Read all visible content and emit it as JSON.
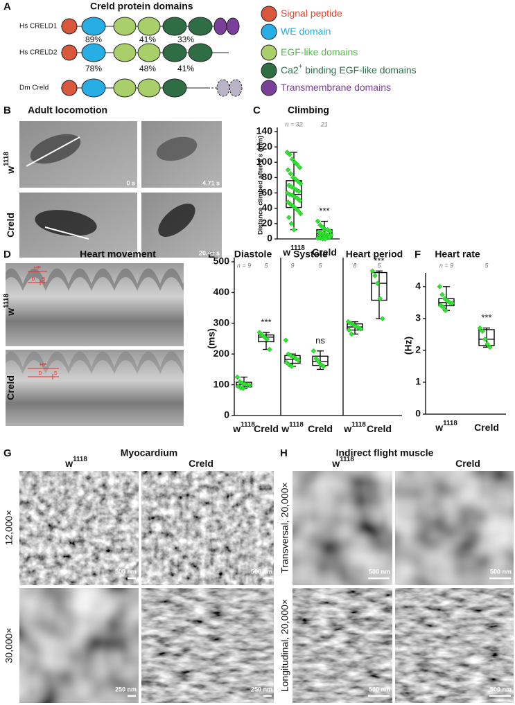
{
  "panels": {
    "A": {
      "label": "A",
      "title": "Creld protein domains",
      "proteins": [
        {
          "name": "Hs CRELD1",
          "identities": [
            "89%",
            "41%",
            "33%"
          ]
        },
        {
          "name": "Hs CRELD2",
          "identities": [
            "78%",
            "48%",
            "41%"
          ]
        },
        {
          "name": "Dm Creld"
        }
      ],
      "legend": [
        {
          "text": "Signal peptide",
          "color": "#e8432d"
        },
        {
          "text": "WE domain",
          "color": "#1cb0e6"
        },
        {
          "text": "EGF-like domains",
          "color": "#52b848"
        },
        {
          "text": "Ca2",
          "sup": "+",
          "tail": " binding EGF-like domains",
          "color": "#27744a"
        },
        {
          "text": "Transmembrane domains",
          "color": "#7a3f99"
        }
      ]
    },
    "B": {
      "label": "B",
      "title": "Adult locomotion",
      "genotypes": [
        {
          "base": "w",
          "sup": "1118"
        },
        {
          "base": "Creld"
        }
      ],
      "times": [
        "0 s",
        "4.71 s",
        "0 s",
        "20.49 s"
      ]
    },
    "C": {
      "label": "C"
    },
    "D": {
      "label": "D",
      "title": "Heart movement",
      "markers": [
        "HP",
        "D",
        "S"
      ]
    },
    "E": {
      "label": "E"
    },
    "F": {
      "label": "F"
    },
    "G": {
      "label": "G",
      "title": "Myocardium",
      "rows": [
        "12,000×",
        "30,000×"
      ],
      "scale_bars": [
        "500 nm",
        "500 nm",
        "250 nm",
        "250 nm"
      ]
    },
    "H": {
      "label": "H",
      "title": "Indirect flight muscle",
      "rows": [
        "Transversal, 20,000×",
        "Longitudinal, 20,000×"
      ],
      "scale_bars": [
        "500 nm",
        "500 nm",
        "500 nm",
        "500 nm"
      ]
    }
  },
  "chart_data": [
    {
      "type": "box",
      "title": "Climbing",
      "ylabel": "Distance climbed after 6 s (mm)",
      "ylim": [
        0,
        140
      ],
      "yticks": [
        0,
        20,
        40,
        60,
        80,
        100,
        120,
        140
      ],
      "point_color": "#2ee62e",
      "groups": [
        {
          "category": {
            "base": "w",
            "sup": "1118"
          },
          "n_label": "n = 32",
          "whisker_low": 12,
          "q1": 41,
          "median": 58,
          "q3": 76,
          "whisker_high": 113,
          "points": [
            113,
            110,
            104,
            100,
            97,
            93,
            90,
            85,
            80,
            78,
            75,
            72,
            70,
            68,
            66,
            64,
            62,
            60,
            58,
            57,
            55,
            53,
            50,
            48,
            45,
            43,
            40,
            37,
            33,
            28,
            20,
            12
          ]
        },
        {
          "category": {
            "base": "Creld"
          },
          "n_label": "21",
          "annotation": "***",
          "whisker_low": 0,
          "q1": 2,
          "median": 7,
          "q3": 12,
          "whisker_high": 23,
          "points": [
            23,
            18,
            15,
            12,
            12,
            10,
            9,
            8,
            7,
            6,
            5,
            5,
            4,
            3,
            3,
            2,
            2,
            1,
            1,
            0,
            0
          ]
        }
      ]
    },
    {
      "type": "box",
      "title": "Diastole",
      "ylabel": "(ms)",
      "ylim": [
        0,
        500
      ],
      "yticks": [
        0,
        100,
        200,
        300,
        400,
        500
      ],
      "point_color": "#2ee62e",
      "groups": [
        {
          "category": {
            "base": "w",
            "sup": "1118"
          },
          "n_label": "n = 9",
          "whisker_low": 88,
          "q1": 93,
          "median": 100,
          "q3": 108,
          "whisker_high": 125,
          "points": [
            125,
            110,
            105,
            102,
            100,
            98,
            95,
            90,
            88
          ]
        },
        {
          "category": {
            "base": "Creld"
          },
          "n_label": "5",
          "annotation": "***",
          "whisker_low": 215,
          "q1": 240,
          "median": 255,
          "q3": 262,
          "whisker_high": 270,
          "points": [
            270,
            262,
            255,
            248,
            215
          ]
        }
      ]
    },
    {
      "type": "box",
      "title": "Systole",
      "ylim": [
        0,
        500
      ],
      "point_color": "#2ee62e",
      "groups": [
        {
          "category": {
            "base": "w",
            "sup": "1118"
          },
          "n_label": "9",
          "whisker_low": 160,
          "q1": 170,
          "median": 183,
          "q3": 195,
          "whisker_high": 200,
          "points": [
            245,
            200,
            195,
            190,
            185,
            180,
            172,
            165,
            160
          ]
        },
        {
          "category": {
            "base": "Creld"
          },
          "n_label": "5",
          "annotation": "ns",
          "whisker_low": 150,
          "q1": 163,
          "median": 175,
          "q3": 193,
          "whisker_high": 210,
          "points": [
            210,
            185,
            175,
            165,
            160
          ]
        }
      ]
    },
    {
      "type": "box",
      "title": "Heart period",
      "ylim": [
        0,
        500
      ],
      "point_color": "#2ee62e",
      "groups": [
        {
          "category": {
            "base": "w",
            "sup": "1118"
          },
          "n_label": "8",
          "whisker_low": 265,
          "q1": 278,
          "median": 288,
          "q3": 298,
          "whisker_high": 305,
          "points": [
            305,
            300,
            295,
            290,
            286,
            282,
            278,
            265
          ]
        },
        {
          "category": {
            "base": "Creld"
          },
          "n_label": "5",
          "annotation": "***",
          "whisker_low": 315,
          "q1": 375,
          "median": 430,
          "q3": 465,
          "whisker_high": 470,
          "points": [
            470,
            455,
            430,
            380,
            315
          ]
        }
      ]
    },
    {
      "type": "box",
      "title": "Heart rate",
      "ylabel": "(Hz)",
      "ylim": [
        0,
        4.3
      ],
      "yticks": [
        0,
        1,
        2,
        3,
        4
      ],
      "point_color": "#2ee62e",
      "groups": [
        {
          "category": {
            "base": "w",
            "sup": "1118"
          },
          "n_label": "n = 9",
          "whisker_low": 3.25,
          "q1": 3.4,
          "median": 3.5,
          "q3": 3.62,
          "whisker_high": 4.0,
          "points": [
            4.0,
            3.75,
            3.62,
            3.55,
            3.5,
            3.48,
            3.42,
            3.35,
            3.25
          ]
        },
        {
          "category": {
            "base": "Creld"
          },
          "n_label": "5",
          "annotation": "***",
          "whisker_low": 2.1,
          "q1": 2.15,
          "median": 2.35,
          "q3": 2.65,
          "whisker_high": 2.7,
          "points": [
            2.7,
            2.6,
            2.35,
            2.2,
            2.1
          ]
        }
      ]
    }
  ]
}
